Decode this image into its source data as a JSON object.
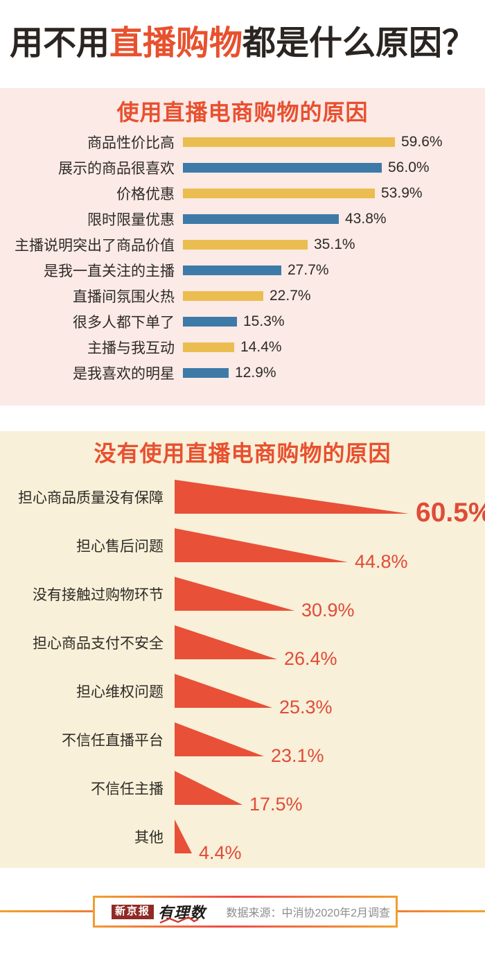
{
  "page": {
    "title": {
      "pre": "用不用",
      "highlight": "直播购物",
      "post": "都是什么原因？",
      "highlight_color": "#E8512E",
      "text_color": "#2B2521"
    }
  },
  "chart_data": [
    {
      "type": "bar",
      "orientation": "horizontal",
      "title": "使用直播电商购物的原因",
      "categories": [
        "商品性价比高",
        "展示的商品很喜欢",
        "价格优惠",
        "限时限量优惠",
        "主播说明突出了商品价值",
        "是我一直关注的主播",
        "直播间氛围火热",
        "很多人都下单了",
        "主播与我互动",
        "是我喜欢的明星"
      ],
      "values": [
        59.6,
        56.0,
        53.9,
        43.8,
        35.1,
        27.7,
        22.7,
        15.3,
        14.4,
        12.9
      ],
      "value_labels": [
        "59.6%",
        "56.0%",
        "53.9%",
        "43.8%",
        "35.1%",
        "27.7%",
        "22.7%",
        "15.3%",
        "14.4%",
        "12.9%"
      ],
      "bar_colors_alternate": [
        "#EBBD50",
        "#3E7AA8"
      ],
      "background": "#FBEAE6",
      "title_color": "#E8502F",
      "label_color": "#2E2A26",
      "xlim": [
        0,
        65
      ],
      "grid": false,
      "legend": false
    },
    {
      "type": "bar",
      "orientation": "horizontal",
      "shape": "triangle-wedge",
      "title": "没有使用直播电商购物的原因",
      "categories": [
        "担心商品质量没有保障",
        "担心售后问题",
        "没有接触过购物环节",
        "担心商品支付不安全",
        "担心维权问题",
        "不信任直播平台",
        "不信任主播",
        "其他"
      ],
      "values": [
        60.5,
        44.8,
        30.9,
        26.4,
        25.3,
        23.1,
        17.5,
        4.4
      ],
      "value_labels": [
        "60.5%",
        "44.8%",
        "30.9%",
        "26.4%",
        "25.3%",
        "23.1%",
        "17.5%",
        "4.4%"
      ],
      "bar_color": "#E85038",
      "value_color": "#E04B38",
      "background": "#F8F0D8",
      "title_color": "#E8502F",
      "label_color": "#2E2A26",
      "xlim": [
        0,
        65
      ],
      "grid": false,
      "legend": false
    }
  ],
  "footer": {
    "logo_primary": "新京报",
    "logo_secondary": "有理数",
    "source": "数据来源：中消协2020年2月调查",
    "line_colors": [
      "#F2A12D",
      "#EE4B47"
    ]
  }
}
